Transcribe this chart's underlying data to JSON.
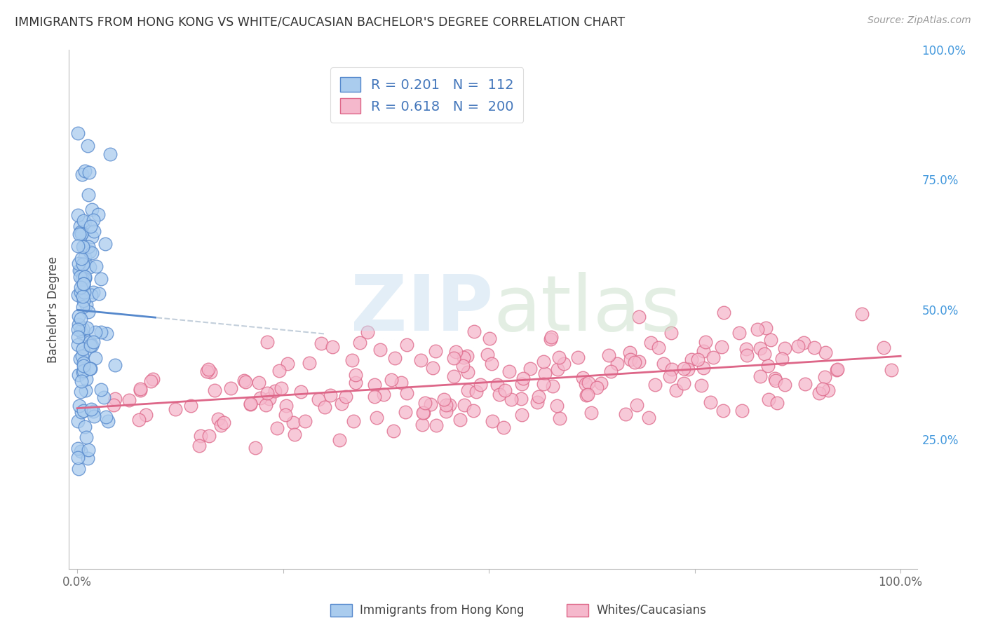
{
  "title": "IMMIGRANTS FROM HONG KONG VS WHITE/CAUCASIAN BACHELOR'S DEGREE CORRELATION CHART",
  "source": "Source: ZipAtlas.com",
  "ylabel": "Bachelor's Degree",
  "right_yticks": [
    "100.0%",
    "75.0%",
    "50.0%",
    "25.0%"
  ],
  "right_ytick_vals": [
    1.0,
    0.75,
    0.5,
    0.25
  ],
  "hk_color": "#5588cc",
  "hk_fill": "#aaccee",
  "white_color": "#dd6688",
  "white_fill": "#f5b8cc",
  "hk_R": 0.201,
  "white_R": 0.618,
  "hk_N": 112,
  "white_N": 200,
  "background_color": "#ffffff",
  "grid_color": "#cccccc",
  "title_color": "#333333",
  "source_color": "#999999",
  "legend_text_color": "#4477bb",
  "right_axis_color": "#4499dd",
  "watermark_zip_color": "#c8dff0",
  "watermark_atlas_color": "#c8dfc8"
}
